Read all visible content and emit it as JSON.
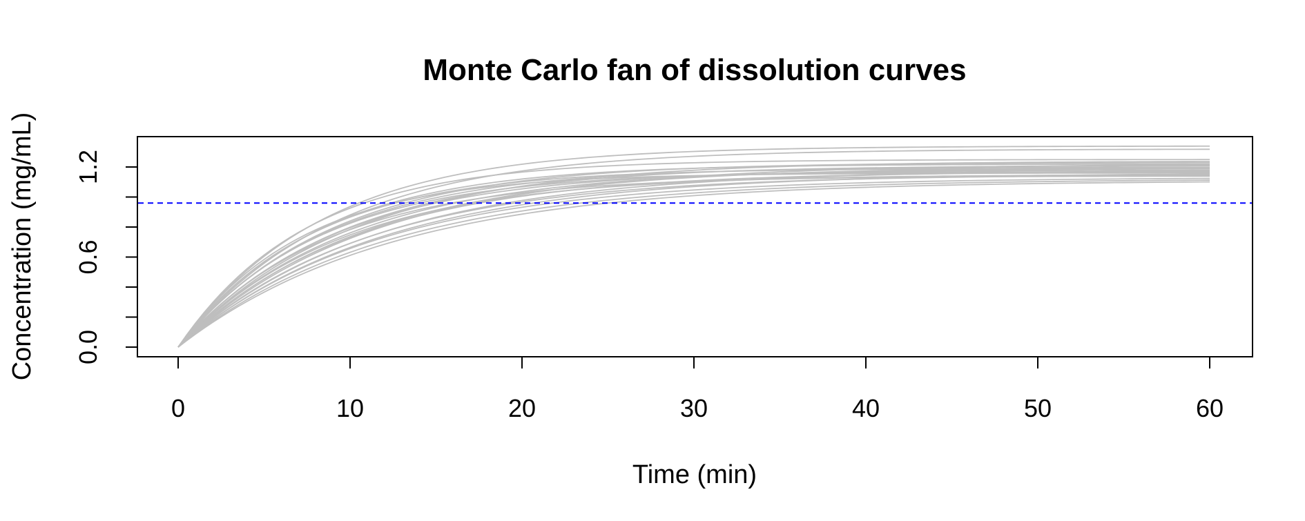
{
  "chart_data": {
    "type": "line",
    "title": "Monte Carlo fan of dissolution curves",
    "xlabel": "Time (min)",
    "ylabel": "Concentration (mg/mL)",
    "xlim": [
      0,
      60
    ],
    "ylim": [
      0,
      1.35
    ],
    "x_ticks": [
      0,
      10,
      20,
      30,
      40,
      50,
      60
    ],
    "x_tick_labels": [
      "0",
      "10",
      "20",
      "30",
      "40",
      "50",
      "60"
    ],
    "y_ticks": [
      0.0,
      0.2,
      0.4,
      0.6,
      0.8,
      1.0,
      1.2
    ],
    "y_tick_labels": [
      "0.0",
      "",
      "",
      "0.6",
      "",
      "",
      "1.2"
    ],
    "grid": false,
    "legend": "none",
    "curve_model": "C(t) = Cmax * (1 - exp(-k * t))",
    "series_color": "#bebebe",
    "series": [
      {
        "cmax": 1.34,
        "k": 0.12
      },
      {
        "cmax": 1.32,
        "k": 0.11
      },
      {
        "cmax": 1.25,
        "k": 0.135
      },
      {
        "cmax": 1.24,
        "k": 0.1
      },
      {
        "cmax": 1.23,
        "k": 0.115
      },
      {
        "cmax": 1.22,
        "k": 0.125
      },
      {
        "cmax": 1.22,
        "k": 0.09
      },
      {
        "cmax": 1.21,
        "k": 0.108
      },
      {
        "cmax": 1.2,
        "k": 0.118
      },
      {
        "cmax": 1.2,
        "k": 0.095
      },
      {
        "cmax": 1.19,
        "k": 0.13
      },
      {
        "cmax": 1.19,
        "k": 0.102
      },
      {
        "cmax": 1.18,
        "k": 0.112
      },
      {
        "cmax": 1.18,
        "k": 0.088
      },
      {
        "cmax": 1.17,
        "k": 0.122
      },
      {
        "cmax": 1.17,
        "k": 0.098
      },
      {
        "cmax": 1.16,
        "k": 0.085
      },
      {
        "cmax": 1.16,
        "k": 0.14
      },
      {
        "cmax": 1.15,
        "k": 0.105
      },
      {
        "cmax": 1.15,
        "k": 0.092
      },
      {
        "cmax": 1.14,
        "k": 0.116
      },
      {
        "cmax": 1.13,
        "k": 0.087
      },
      {
        "cmax": 1.12,
        "k": 0.083
      },
      {
        "cmax": 1.11,
        "k": 0.08
      }
    ],
    "reference_line": {
      "y": 0.96,
      "color": "#0000ff",
      "style": "dashed"
    }
  }
}
